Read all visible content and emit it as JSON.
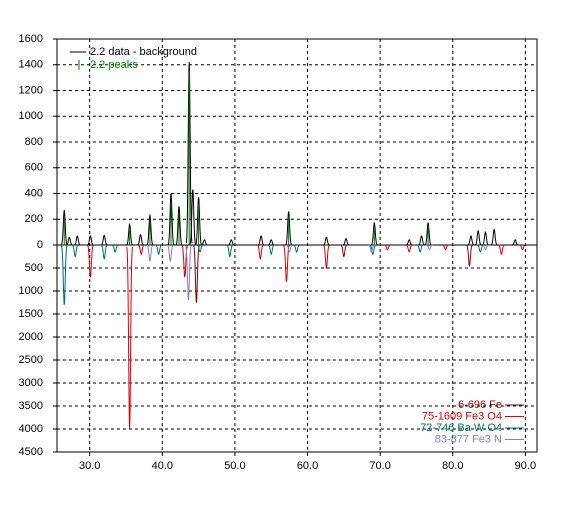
{
  "chart_data": {
    "type": "stem",
    "xlim": [
      25.5,
      91.6
    ],
    "xticks": [
      {
        "value": 30,
        "label": "30.0"
      },
      {
        "value": 40,
        "label": "40.0"
      },
      {
        "value": 50,
        "label": "50.0"
      },
      {
        "value": 60,
        "label": "60.0"
      },
      {
        "value": 70,
        "label": "70.0"
      },
      {
        "value": 80,
        "label": "80.0"
      },
      {
        "value": 90,
        "label": "90.0"
      }
    ],
    "ylim": [
      0,
      1600
    ],
    "yticks": [
      0,
      200,
      400,
      600,
      800,
      1000,
      1200,
      1400,
      1600
    ],
    "y2lim": [
      0,
      4500
    ],
    "y2ticks": [
      500,
      1000,
      1500,
      2000,
      2500,
      3000,
      3500,
      4000,
      4500
    ],
    "grid": true,
    "series": [
      {
        "name": "2.2 data - background",
        "color": "#000000",
        "x": [
          26.5,
          27.2,
          28.3,
          30.1,
          32.0,
          35.5,
          37.0,
          38.3,
          41.2,
          42.3,
          43.7,
          44.2,
          45.0,
          45.8,
          49.5,
          53.6,
          55.0,
          57.4,
          62.6,
          65.3,
          69.2,
          74.0,
          75.7,
          76.6,
          82.5,
          83.5,
          84.5,
          85.7,
          88.6
        ],
        "values": [
          270,
          60,
          70,
          70,
          75,
          160,
          80,
          230,
          400,
          300,
          1420,
          430,
          370,
          40,
          40,
          70,
          40,
          260,
          60,
          50,
          170,
          40,
          70,
          170,
          70,
          110,
          100,
          120,
          40
        ]
      },
      {
        "name": "2.2 peaks",
        "color": "#008000",
        "x": [
          26.5,
          35.5,
          38.3,
          41.2,
          42.3,
          43.7,
          45.0,
          57.4,
          69.2,
          76.6
        ],
        "values": [
          200,
          120,
          180,
          330,
          250,
          1350,
          320,
          220,
          140,
          150
        ]
      },
      {
        "name": "6-696 Fe",
        "color": "#8b0000",
        "axis": "y2",
        "x": [
          44.7,
          65.0,
          82.3
        ],
        "values": [
          1250,
          250,
          450
        ]
      },
      {
        "name": "75-1609 Fe3 O4",
        "color": "#e00000",
        "axis": "y2",
        "x": [
          30.1,
          35.5,
          37.1,
          43.1,
          53.5,
          57.1,
          62.6,
          71.0,
          74.0,
          79.0,
          86.7,
          89.6
        ],
        "values": [
          700,
          4000,
          200,
          700,
          300,
          800,
          500,
          100,
          150,
          100,
          200,
          100
        ]
      },
      {
        "name": "72-746 Ba W O4",
        "color": "#007060",
        "axis": "y2",
        "x": [
          26.5,
          28.0,
          32.0,
          33.5,
          39.5,
          45.2,
          49.3,
          55.0,
          58.5,
          69.0,
          75.5,
          83.8
        ],
        "values": [
          1300,
          250,
          300,
          150,
          200,
          150,
          250,
          200,
          150,
          200,
          150,
          150
        ]
      },
      {
        "name": "83-877 Fe3 N",
        "color": "#7f7fdf",
        "axis": "y2",
        "x": [
          38.3,
          41.1,
          43.6,
          57.5,
          68.8,
          76.8,
          84.5
        ],
        "values": [
          350,
          350,
          1200,
          150,
          150,
          100,
          100
        ]
      }
    ]
  }
}
